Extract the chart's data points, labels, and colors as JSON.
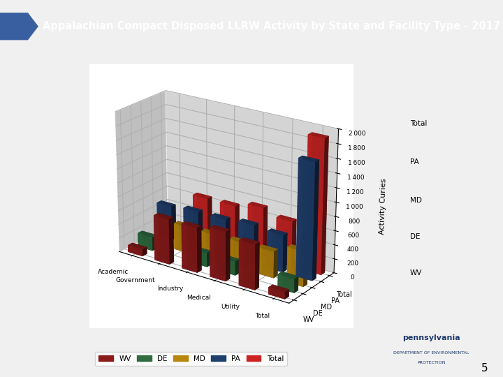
{
  "title": "Appalachian Compact Disposed LLRW Activity by State and Facility Type - 2017",
  "title_bg": "#1e3a6e",
  "title_color": "white",
  "ylabel": "Activity Curies",
  "categories": [
    "Academic",
    "Government",
    "Industry",
    "Medical",
    "Utility",
    "Total"
  ],
  "series_labels": [
    "WV",
    "DE",
    "MD",
    "PA",
    "Total"
  ],
  "series_colors": [
    "#8B1A1A",
    "#2E6B3E",
    "#B8860B",
    "#1F3F6E",
    "#CC2222"
  ],
  "data": {
    "WV": [
      100,
      650,
      640,
      700,
      640,
      100
    ],
    "DE": [
      200,
      0,
      200,
      200,
      0,
      200
    ],
    "MD": [
      0,
      380,
      380,
      380,
      380,
      500
    ],
    "PA": [
      500,
      530,
      530,
      560,
      530,
      1650
    ],
    "Total": [
      0,
      650,
      650,
      730,
      650,
      1900
    ]
  },
  "ylim": [
    0,
    2000
  ],
  "yticks": [
    0,
    200,
    400,
    600,
    800,
    1000,
    1200,
    1400,
    1600,
    1800,
    2000
  ],
  "page_bg": "#f0f0f0",
  "chart_wall_color": "#b0b0b0",
  "chart_floor_color": "#c8c8c8",
  "chart_bg": "#d4d4d4",
  "header_stripe_color": "#2E7D32",
  "right_labels": [
    "Total",
    "PA",
    "MD",
    "DE",
    "WV"
  ],
  "legend_labels": [
    "WV",
    "DE",
    "MD",
    "PA",
    "Total"
  ]
}
